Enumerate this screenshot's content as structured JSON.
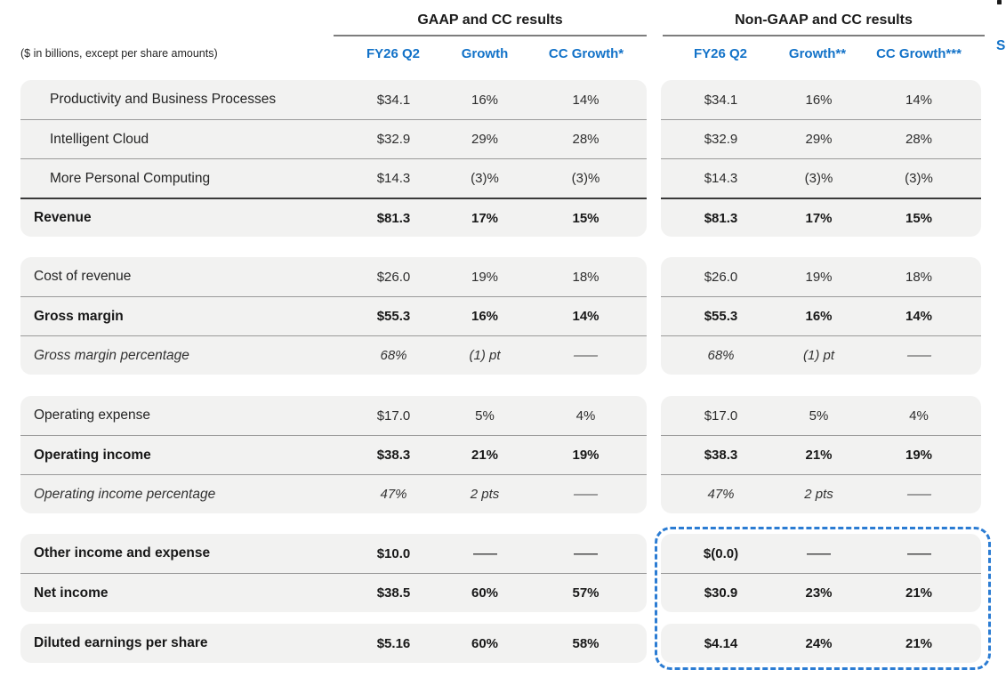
{
  "note": "($ in billions, except per share amounts)",
  "column_groups": [
    {
      "title": "GAAP and CC results",
      "columns": [
        "FY26 Q2",
        "Growth",
        "CC Growth*"
      ]
    },
    {
      "title": "Non-GAAP and CC results",
      "columns": [
        "FY26 Q2",
        "Growth**",
        "CC Growth***"
      ]
    }
  ],
  "sections": [
    {
      "rows": [
        {
          "label": "Productivity and Business Processes",
          "style": "segment",
          "gaap": [
            "$34.1",
            "16%",
            "14%"
          ],
          "non_gaap": [
            "$34.1",
            "16%",
            "14%"
          ]
        },
        {
          "label": "Intelligent Cloud",
          "style": "segment",
          "gaap": [
            "$32.9",
            "29%",
            "28%"
          ],
          "non_gaap": [
            "$32.9",
            "29%",
            "28%"
          ]
        },
        {
          "label": "More Personal Computing",
          "style": "segment",
          "gaap": [
            "$14.3",
            "(3)%",
            "(3)%"
          ],
          "non_gaap": [
            "$14.3",
            "(3)%",
            "(3)%"
          ]
        },
        {
          "label": "Revenue",
          "style": "total",
          "rule_above": "thick",
          "gaap": [
            "$81.3",
            "17%",
            "15%"
          ],
          "non_gaap": [
            "$81.3",
            "17%",
            "15%"
          ]
        }
      ]
    },
    {
      "rows": [
        {
          "label": "Cost of revenue",
          "style": "regular",
          "gaap": [
            "$26.0",
            "19%",
            "18%"
          ],
          "non_gaap": [
            "$26.0",
            "19%",
            "18%"
          ]
        },
        {
          "label": "Gross margin",
          "style": "total",
          "gaap": [
            "$55.3",
            "16%",
            "14%"
          ],
          "non_gaap": [
            "$55.3",
            "16%",
            "14%"
          ]
        },
        {
          "label": "Gross margin percentage",
          "style": "italic",
          "gaap": [
            "68%",
            "(1) pt",
            "—"
          ],
          "non_gaap": [
            "68%",
            "(1) pt",
            "—"
          ]
        }
      ]
    },
    {
      "rows": [
        {
          "label": "Operating expense",
          "style": "regular",
          "gaap": [
            "$17.0",
            "5%",
            "4%"
          ],
          "non_gaap": [
            "$17.0",
            "5%",
            "4%"
          ]
        },
        {
          "label": "Operating income",
          "style": "total",
          "gaap": [
            "$38.3",
            "21%",
            "19%"
          ],
          "non_gaap": [
            "$38.3",
            "21%",
            "19%"
          ]
        },
        {
          "label": "Operating income percentage",
          "style": "italic",
          "gaap": [
            "47%",
            "2 pts",
            "—"
          ],
          "non_gaap": [
            "47%",
            "2 pts",
            "—"
          ]
        }
      ]
    },
    {
      "rows": [
        {
          "label": "Other income and expense",
          "style": "total",
          "gaap": [
            "$10.0",
            "—",
            "—"
          ],
          "non_gaap": [
            "$(0.0)",
            "—",
            "—"
          ]
        },
        {
          "label": "Net income",
          "style": "total",
          "gaap": [
            "$38.5",
            "60%",
            "57%"
          ],
          "non_gaap": [
            "$30.9",
            "23%",
            "21%"
          ]
        }
      ]
    },
    {
      "rows": [
        {
          "label": "Diluted earnings per share",
          "style": "total",
          "gaap": [
            "$5.16",
            "60%",
            "58%"
          ],
          "non_gaap": [
            "$4.14",
            "24%",
            "21%"
          ]
        }
      ]
    }
  ],
  "highlight_box": {
    "color": "#2b7cd3"
  },
  "side_panel": {
    "heading_fragment": "S",
    "bullet_count": 8
  },
  "colors": {
    "accent_blue": "#1272c8",
    "row_background": "#f2f2f1",
    "separator": "#9a9a9a",
    "thick_rule": "#3a3a3a",
    "highlight_dash": "#2b7cd3"
  }
}
